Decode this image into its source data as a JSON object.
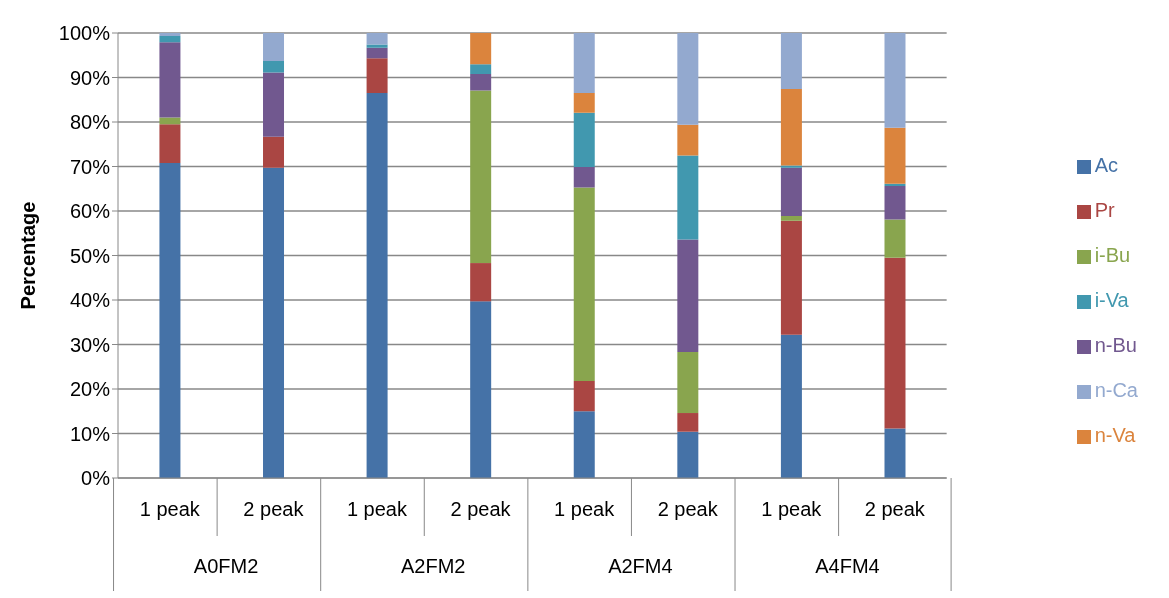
{
  "chart_data": {
    "type": "bar",
    "stacked": true,
    "ylabel": "Percentage",
    "categories": [
      "1 peak",
      "2 peak",
      "1 peak",
      "2 peak",
      "1 peak",
      "2 peak",
      "1 peak",
      "2 peak"
    ],
    "annotations": [
      "A0FM2",
      "A2FM2",
      "A2FM4",
      "A4FM4"
    ],
    "series": [
      {
        "name": "Ac",
        "color": "#4572a7",
        "values": [
          70.8,
          69.7,
          86.5,
          39.7,
          15.0,
          10.4,
          32.2,
          11.1
        ]
      },
      {
        "name": "Pr",
        "color": "#aa4643",
        "values": [
          8.7,
          7.0,
          7.8,
          8.6,
          6.8,
          4.2,
          25.6,
          38.4
        ]
      },
      {
        "name": "i-Bu",
        "color": "#89a54e",
        "values": [
          1.5,
          0,
          0,
          38.8,
          43.5,
          13.7,
          1.1,
          8.6
        ]
      },
      {
        "name": "n-Bu",
        "color": "#71588f",
        "values": [
          16.9,
          14.4,
          2.4,
          3.7,
          4.6,
          25.3,
          10.8,
          7.5
        ]
      },
      {
        "name": "i-Va",
        "color": "#4198af",
        "values": [
          1.4,
          2.6,
          0.7,
          2.2,
          12.2,
          18.9,
          0.5,
          0.5
        ]
      },
      {
        "name": "n-Va",
        "color": "#db843d",
        "values": [
          0,
          0,
          0,
          7.0,
          4.4,
          6.9,
          17.2,
          12.6
        ]
      },
      {
        "name": "n-Ca",
        "color": "#93a9cf",
        "values": [
          0.7,
          6.3,
          2.6,
          0,
          13.5,
          20.6,
          12.6,
          21.3
        ]
      }
    ],
    "ylim": [
      0,
      100
    ],
    "yticks": [
      {
        "value": 0,
        "label": "0%"
      },
      {
        "value": 10,
        "label": "10%"
      },
      {
        "value": 20,
        "label": "20%"
      },
      {
        "value": 30,
        "label": "30%"
      },
      {
        "value": 40,
        "label": "40%"
      },
      {
        "value": 50,
        "label": "50%"
      },
      {
        "value": 60,
        "label": "60%"
      },
      {
        "value": 70,
        "label": "70%"
      },
      {
        "value": 80,
        "label": "80%"
      },
      {
        "value": 90,
        "label": "90%"
      },
      {
        "value": 100,
        "label": "100%"
      }
    ],
    "grid": "y",
    "legend": "right"
  }
}
